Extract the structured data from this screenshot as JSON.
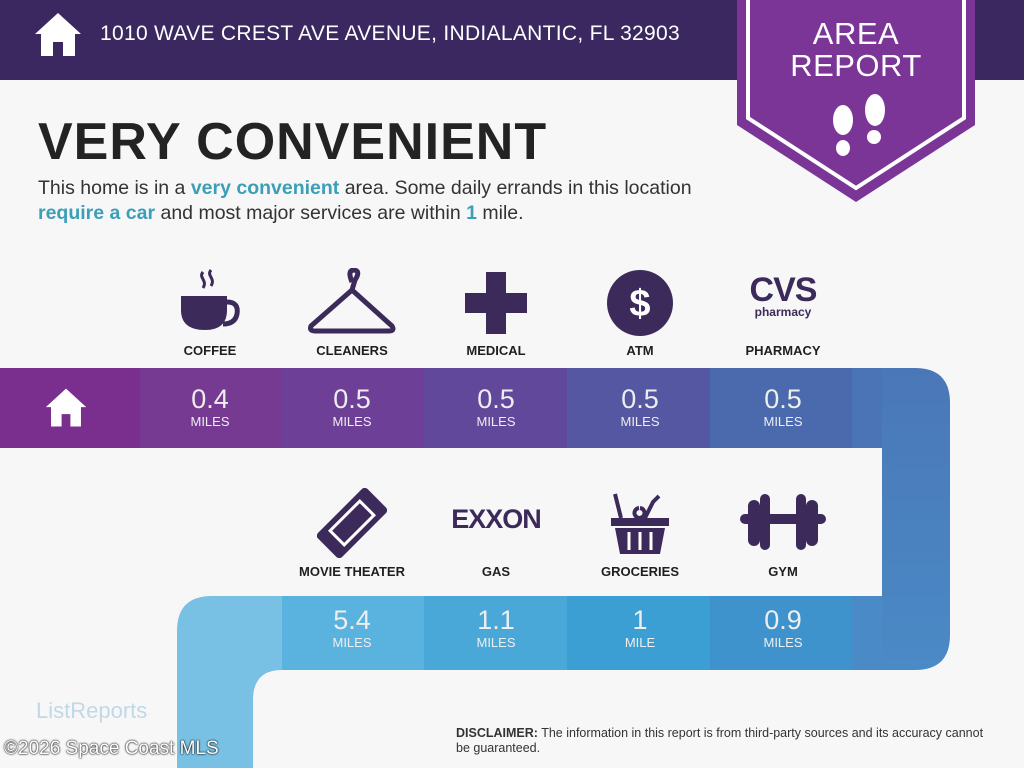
{
  "header": {
    "address": "1010 WAVE CREST AVE AVENUE, INDIALANTIC, FL 32903",
    "home_icon": "house-icon"
  },
  "badge": {
    "line1": "AREA",
    "line2": "REPORT",
    "icon": "footprints-icon",
    "color": "#7b3597"
  },
  "title": "VERY CONVENIENT",
  "description": {
    "p1": "This home is in a ",
    "h1": "very convenient",
    "p2": " area. Some daily errands in this location ",
    "h2": "require a car",
    "p3": " and most major services are within ",
    "h3": "1",
    "p4": " mile.",
    "highlight_color": "#3a9fb7"
  },
  "amenities_row1": [
    {
      "label": "COFFEE",
      "value": "0.4",
      "unit": "MILES",
      "icon": "coffee-cup-icon"
    },
    {
      "label": "CLEANERS",
      "value": "0.5",
      "unit": "MILES",
      "icon": "hanger-icon"
    },
    {
      "label": "MEDICAL",
      "value": "0.5",
      "unit": "MILES",
      "icon": "medical-cross-icon"
    },
    {
      "label": "ATM",
      "value": "0.5",
      "unit": "MILES",
      "icon": "dollar-icon"
    },
    {
      "label": "PHARMACY",
      "value": "0.5",
      "unit": "MILES",
      "icon": "cvs-pharmacy-logo",
      "logo_text": "CVS pharmacy"
    }
  ],
  "amenities_row2": [
    {
      "label": "MOVIE THEATER",
      "value": "5.4",
      "unit": "MILES",
      "icon": "ticket-icon"
    },
    {
      "label": "GAS",
      "value": "1.1",
      "unit": "MILES",
      "icon": "exxon-logo",
      "logo_text": "EXXON"
    },
    {
      "label": "GROCERIES",
      "value": "1",
      "unit": "MILE",
      "icon": "grocery-basket-icon"
    },
    {
      "label": "GYM",
      "value": "0.9",
      "unit": "MILES",
      "icon": "dumbbell-icon"
    }
  ],
  "footer": {
    "disclaimer_label": "DISCLAIMER:",
    "disclaimer_text": " The information in this report is from third-party sources and its accuracy cannot be guaranteed.",
    "brand": "ListReports",
    "copyright": "©2026 Space Coast MLS"
  }
}
